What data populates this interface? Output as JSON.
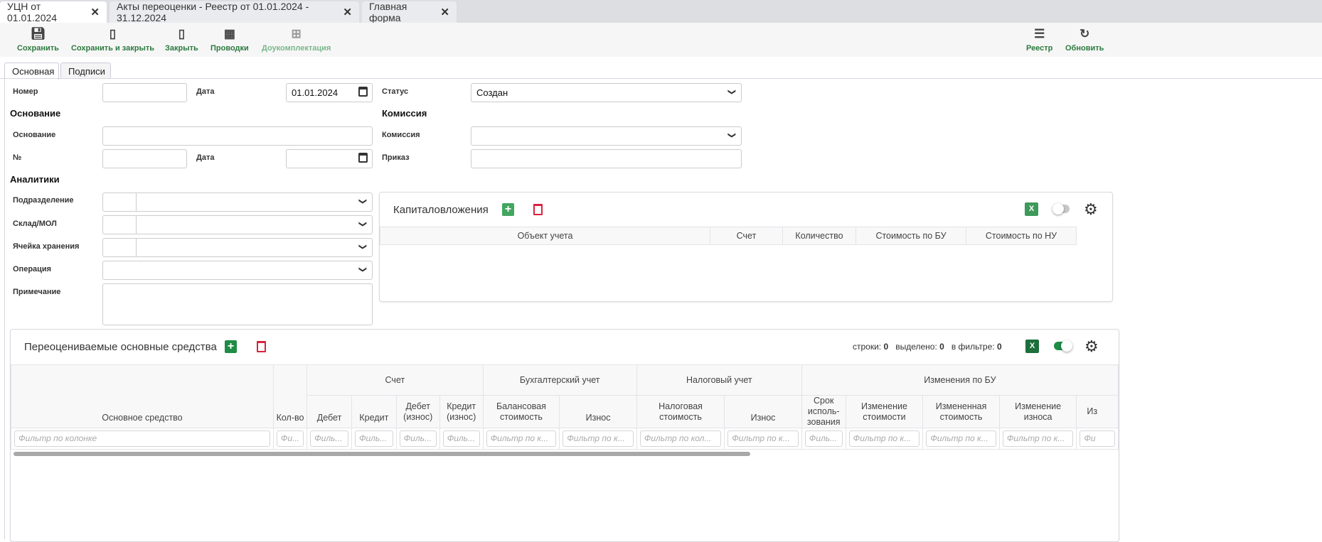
{
  "window_tabs": [
    {
      "label": "УЦН от 01.01.2024",
      "active": true
    },
    {
      "label": "Акты переоценки - Реестр от 01.01.2024 - 31.12.2024"
    },
    {
      "label": "Главная форма"
    }
  ],
  "toolbar": {
    "save": "Сохранить",
    "save_close": "Сохранить и закрыть",
    "close": "Закрыть",
    "entries": "Проводки",
    "complete": "Доукомплектация",
    "registry": "Реестр",
    "refresh": "Обновить"
  },
  "form_tabs": [
    "Основная",
    "Подписи"
  ],
  "form": {
    "number_label": "Номер",
    "number_value": "",
    "date_label": "Дата",
    "date_value": "01.01.2024",
    "status_label": "Статус",
    "status_value": "Создан",
    "basis_heading": "Основание",
    "basis_label": "Основание",
    "basis_value": "",
    "no_label": "№",
    "no_value": "",
    "basis_date_label": "Дата",
    "basis_date_value": "",
    "commission_heading": "Комиссия",
    "commission_label": "Комиссия",
    "commission_value": "",
    "order_label": "Приказ",
    "order_value": "",
    "analytics_heading": "Аналитики",
    "division_label": "Подразделение",
    "warehouse_label": "Склад/МОЛ",
    "cell_label": "Ячейка хранения",
    "operation_label": "Операция",
    "note_label": "Примечание"
  },
  "capital": {
    "title": "Капиталовложения",
    "excel": "X",
    "toggle_on": false,
    "columns": [
      "Объект учета",
      "Счет",
      "Количество",
      "Стоимость по БУ",
      "Стоимость по НУ"
    ]
  },
  "assets": {
    "title": "Переоцениваемые основные средства",
    "excel": "X",
    "toggle_on": true,
    "stats": {
      "rows_label": "строки:",
      "rows": "0",
      "selected_label": "выделено:",
      "selected": "0",
      "filtered_label": "в фильтре:",
      "filtered": "0"
    },
    "groups": {
      "account": "Счет",
      "bu": "Бухгалтерский учет",
      "nu": "Налоговый учет",
      "changes": "Изменения по БУ"
    },
    "columns": [
      "Основное средство",
      "Кол-во",
      "Дебет",
      "Кредит",
      "Дебет (износ)",
      "Кредит (износ)",
      "Балансовая стоимость",
      "Износ",
      "Налоговая стоимость",
      "Износ",
      "Срок исполь-зования",
      "Изменение стоимости",
      "Измененная стоимость",
      "Изменение износа",
      "Из"
    ],
    "filters": [
      "Фильтр по колонке",
      "Фи...",
      "Филь...",
      "Филь...",
      "Филь...",
      "Филь...",
      "Фильтр по к...",
      "Фильтр по к...",
      "Фильтр по кол...",
      "Фильтр по к...",
      "Филь...",
      "Фильтр по к...",
      "Фильтр по к...",
      "Фильтр по к...",
      "Фи"
    ]
  },
  "colors": {
    "green": "#2c7a3e",
    "add_green": "#1e8c45",
    "excel_green": "#1d6f3b",
    "delete_red": "#d9233f"
  }
}
